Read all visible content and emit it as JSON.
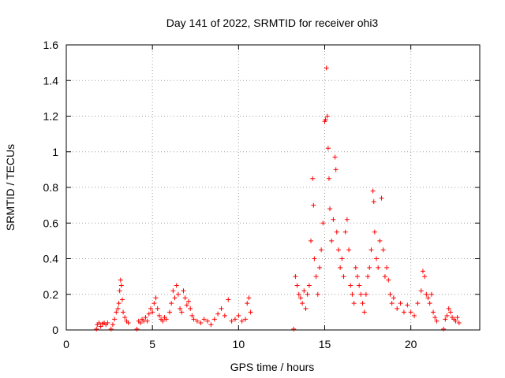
{
  "chart_data": {
    "type": "scatter",
    "title": "Day 141 of 2022, SRMTID for receiver ohi3",
    "xlabel": "GPS time / hours",
    "ylabel": "SRMTID / TECUs",
    "xlim": [
      0,
      24
    ],
    "ylim": [
      0,
      1.6
    ],
    "xticks": [
      0,
      5,
      10,
      15,
      20
    ],
    "xtick_labels": [
      "0",
      "5",
      "10",
      "15",
      "20"
    ],
    "yticks": [
      0,
      0.2,
      0.4,
      0.6,
      0.8,
      1.0,
      1.2,
      1.4,
      1.6
    ],
    "ytick_labels": [
      "0",
      "0.2",
      "0.4",
      "0.6",
      "0.8",
      "1",
      "1.2",
      "1.4",
      "1.6"
    ],
    "grid": true,
    "marker": "plus",
    "color": "#ff0000",
    "series": [
      {
        "name": "ohi3",
        "points": [
          [
            1.75,
            0.005
          ],
          [
            2.6,
            0.005
          ],
          [
            4.1,
            0.005
          ],
          [
            13.2,
            0.005
          ],
          [
            21.9,
            0.005
          ],
          [
            1.8,
            0.03
          ],
          [
            1.9,
            0.04
          ],
          [
            2.0,
            0.02
          ],
          [
            2.1,
            0.035
          ],
          [
            2.2,
            0.04
          ],
          [
            2.3,
            0.03
          ],
          [
            2.4,
            0.04
          ],
          [
            2.7,
            0.03
          ],
          [
            2.8,
            0.06
          ],
          [
            2.9,
            0.1
          ],
          [
            3.0,
            0.12
          ],
          [
            3.05,
            0.15
          ],
          [
            3.1,
            0.22
          ],
          [
            3.15,
            0.28
          ],
          [
            3.2,
            0.25
          ],
          [
            3.25,
            0.17
          ],
          [
            3.3,
            0.1
          ],
          [
            3.4,
            0.07
          ],
          [
            3.5,
            0.05
          ],
          [
            3.6,
            0.04
          ],
          [
            4.2,
            0.05
          ],
          [
            4.3,
            0.04
          ],
          [
            4.4,
            0.06
          ],
          [
            4.5,
            0.05
          ],
          [
            4.6,
            0.07
          ],
          [
            4.7,
            0.05
          ],
          [
            4.8,
            0.09
          ],
          [
            4.9,
            0.12
          ],
          [
            5.0,
            0.1
          ],
          [
            5.1,
            0.15
          ],
          [
            5.2,
            0.18
          ],
          [
            5.3,
            0.12
          ],
          [
            5.4,
            0.08
          ],
          [
            5.5,
            0.06
          ],
          [
            5.6,
            0.05
          ],
          [
            5.7,
            0.07
          ],
          [
            5.8,
            0.06
          ],
          [
            6.0,
            0.1
          ],
          [
            6.1,
            0.15
          ],
          [
            6.2,
            0.22
          ],
          [
            6.3,
            0.18
          ],
          [
            6.4,
            0.25
          ],
          [
            6.5,
            0.2
          ],
          [
            6.6,
            0.12
          ],
          [
            6.7,
            0.1
          ],
          [
            6.8,
            0.22
          ],
          [
            6.9,
            0.18
          ],
          [
            7.0,
            0.14
          ],
          [
            7.1,
            0.16
          ],
          [
            7.2,
            0.12
          ],
          [
            7.3,
            0.08
          ],
          [
            7.4,
            0.06
          ],
          [
            7.6,
            0.05
          ],
          [
            7.8,
            0.04
          ],
          [
            8.0,
            0.06
          ],
          [
            8.2,
            0.05
          ],
          [
            8.4,
            0.03
          ],
          [
            8.6,
            0.06
          ],
          [
            8.8,
            0.09
          ],
          [
            9.0,
            0.12
          ],
          [
            9.2,
            0.08
          ],
          [
            9.4,
            0.17
          ],
          [
            9.6,
            0.05
          ],
          [
            9.8,
            0.06
          ],
          [
            10.0,
            0.08
          ],
          [
            10.2,
            0.05
          ],
          [
            10.4,
            0.06
          ],
          [
            10.5,
            0.15
          ],
          [
            10.6,
            0.18
          ],
          [
            10.7,
            0.1
          ],
          [
            13.3,
            0.3
          ],
          [
            13.4,
            0.25
          ],
          [
            13.5,
            0.2
          ],
          [
            13.6,
            0.18
          ],
          [
            13.7,
            0.15
          ],
          [
            13.8,
            0.22
          ],
          [
            13.9,
            0.12
          ],
          [
            14.0,
            0.2
          ],
          [
            14.1,
            0.25
          ],
          [
            14.2,
            0.5
          ],
          [
            14.3,
            0.85
          ],
          [
            14.35,
            0.7
          ],
          [
            14.4,
            0.4
          ],
          [
            14.5,
            0.3
          ],
          [
            14.6,
            0.2
          ],
          [
            14.7,
            0.35
          ],
          [
            14.8,
            0.45
          ],
          [
            14.9,
            0.6
          ],
          [
            15.0,
            1.17
          ],
          [
            15.05,
            1.18
          ],
          [
            15.1,
            1.47
          ],
          [
            15.15,
            1.2
          ],
          [
            15.2,
            1.02
          ],
          [
            15.25,
            0.85
          ],
          [
            15.3,
            0.68
          ],
          [
            15.4,
            0.5
          ],
          [
            15.5,
            0.62
          ],
          [
            15.6,
            0.97
          ],
          [
            15.65,
            0.9
          ],
          [
            15.7,
            0.55
          ],
          [
            15.8,
            0.45
          ],
          [
            15.9,
            0.35
          ],
          [
            16.0,
            0.4
          ],
          [
            16.1,
            0.3
          ],
          [
            16.2,
            0.55
          ],
          [
            16.3,
            0.62
          ],
          [
            16.4,
            0.45
          ],
          [
            16.5,
            0.25
          ],
          [
            16.6,
            0.2
          ],
          [
            16.7,
            0.15
          ],
          [
            16.8,
            0.35
          ],
          [
            16.9,
            0.3
          ],
          [
            17.0,
            0.25
          ],
          [
            17.1,
            0.2
          ],
          [
            17.2,
            0.15
          ],
          [
            17.3,
            0.1
          ],
          [
            17.4,
            0.2
          ],
          [
            17.5,
            0.3
          ],
          [
            17.6,
            0.35
          ],
          [
            17.7,
            0.45
          ],
          [
            17.8,
            0.78
          ],
          [
            17.85,
            0.72
          ],
          [
            17.9,
            0.55
          ],
          [
            18.0,
            0.4
          ],
          [
            18.1,
            0.35
          ],
          [
            18.2,
            0.5
          ],
          [
            18.3,
            0.74
          ],
          [
            18.4,
            0.45
          ],
          [
            18.5,
            0.3
          ],
          [
            18.6,
            0.35
          ],
          [
            18.7,
            0.28
          ],
          [
            18.8,
            0.2
          ],
          [
            18.9,
            0.15
          ],
          [
            19.0,
            0.18
          ],
          [
            19.2,
            0.12
          ],
          [
            19.4,
            0.15
          ],
          [
            19.6,
            0.1
          ],
          [
            19.8,
            0.14
          ],
          [
            20.0,
            0.1
          ],
          [
            20.2,
            0.08
          ],
          [
            20.4,
            0.15
          ],
          [
            20.6,
            0.22
          ],
          [
            20.7,
            0.33
          ],
          [
            20.8,
            0.3
          ],
          [
            20.9,
            0.2
          ],
          [
            21.0,
            0.18
          ],
          [
            21.1,
            0.15
          ],
          [
            21.2,
            0.2
          ],
          [
            21.3,
            0.1
          ],
          [
            21.4,
            0.07
          ],
          [
            21.5,
            0.05
          ],
          [
            22.0,
            0.06
          ],
          [
            22.1,
            0.08
          ],
          [
            22.2,
            0.12
          ],
          [
            22.3,
            0.1
          ],
          [
            22.4,
            0.07
          ],
          [
            22.5,
            0.06
          ],
          [
            22.6,
            0.05
          ],
          [
            22.7,
            0.07
          ],
          [
            22.8,
            0.04
          ]
        ]
      }
    ]
  }
}
